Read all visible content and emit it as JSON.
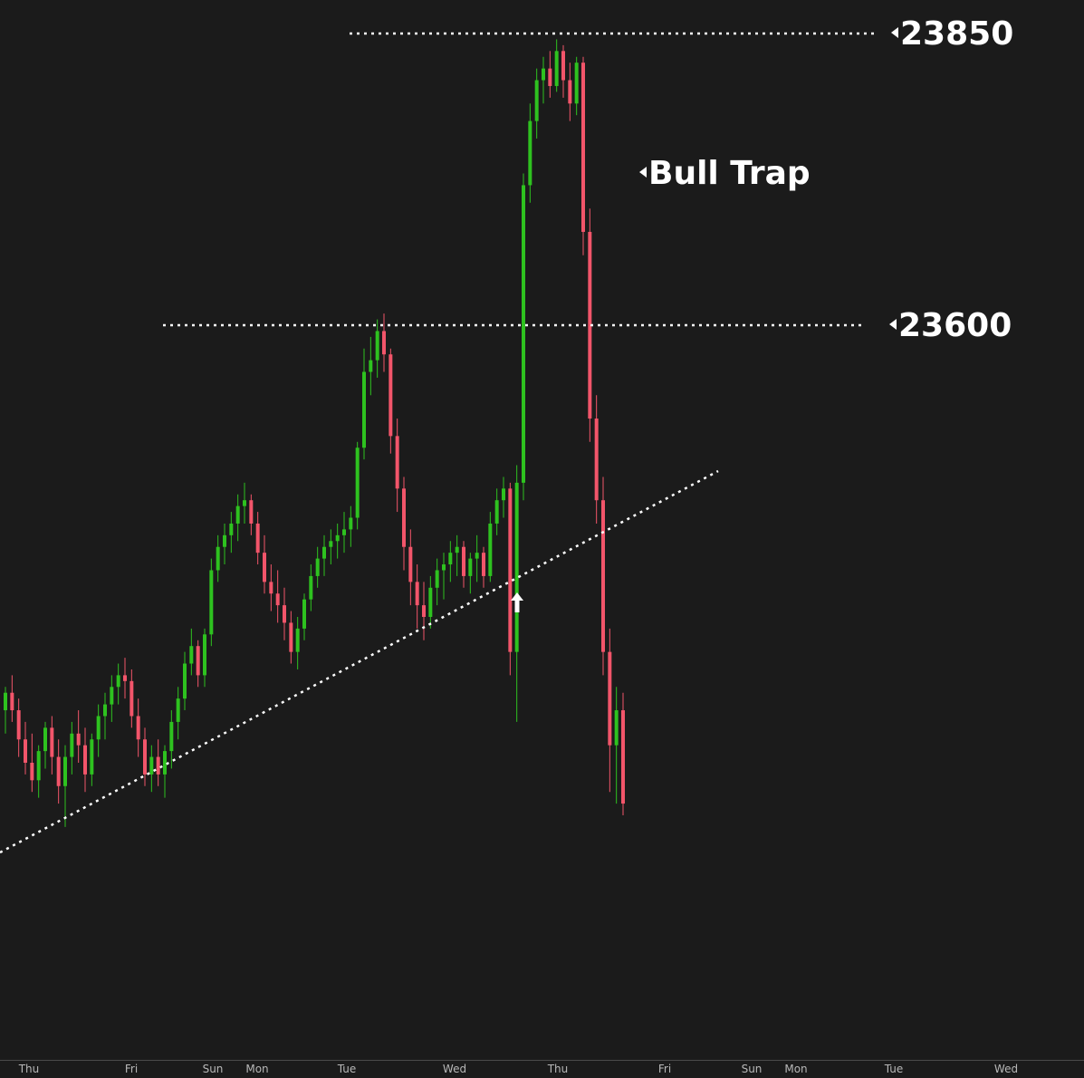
{
  "chart_data": {
    "type": "candlestick",
    "x_ticks": [
      "Thu",
      "Fri",
      "Sun",
      "Mon",
      "Tue",
      "Wed",
      "Thu",
      "Fri",
      "Sun",
      "Mon",
      "Tue",
      "Wed"
    ],
    "levels": [
      {
        "value": 23850,
        "label": "23850"
      },
      {
        "value": 23600,
        "label": "23600"
      }
    ],
    "annotation": "Bull Trap",
    "colors": {
      "up": "#2ec21f",
      "down": "#f2556a",
      "background": "#1b1b1b",
      "lines": "#ffffff"
    },
    "grid": false,
    "trendline": {
      "style": "dotted",
      "direction": "rising"
    },
    "series": [
      {
        "type": "ohlc",
        "values": [
          [
            23270,
            23290,
            23250,
            23285
          ],
          [
            23285,
            23300,
            23260,
            23270
          ],
          [
            23270,
            23280,
            23230,
            23245
          ],
          [
            23245,
            23260,
            23215,
            23225
          ],
          [
            23225,
            23250,
            23200,
            23210
          ],
          [
            23210,
            23240,
            23195,
            23235
          ],
          [
            23235,
            23260,
            23220,
            23255
          ],
          [
            23255,
            23265,
            23215,
            23230
          ],
          [
            23230,
            23245,
            23190,
            23205
          ],
          [
            23205,
            23240,
            23170,
            23230
          ],
          [
            23230,
            23260,
            23215,
            23250
          ],
          [
            23250,
            23270,
            23225,
            23240
          ],
          [
            23240,
            23255,
            23200,
            23215
          ],
          [
            23215,
            23250,
            23205,
            23245
          ],
          [
            23245,
            23275,
            23230,
            23265
          ],
          [
            23265,
            23285,
            23245,
            23275
          ],
          [
            23275,
            23300,
            23260,
            23290
          ],
          [
            23290,
            23310,
            23275,
            23300
          ],
          [
            23300,
            23315,
            23280,
            23295
          ],
          [
            23295,
            23305,
            23255,
            23265
          ],
          [
            23265,
            23280,
            23230,
            23245
          ],
          [
            23245,
            23255,
            23205,
            23215
          ],
          [
            23215,
            23240,
            23200,
            23230
          ],
          [
            23230,
            23245,
            23205,
            23215
          ],
          [
            23215,
            23240,
            23195,
            23235
          ],
          [
            23235,
            23270,
            23220,
            23260
          ],
          [
            23260,
            23290,
            23245,
            23280
          ],
          [
            23280,
            23320,
            23270,
            23310
          ],
          [
            23310,
            23340,
            23300,
            23325
          ],
          [
            23325,
            23330,
            23290,
            23300
          ],
          [
            23300,
            23340,
            23290,
            23335
          ],
          [
            23335,
            23400,
            23325,
            23390
          ],
          [
            23390,
            23420,
            23380,
            23410
          ],
          [
            23410,
            23430,
            23395,
            23420
          ],
          [
            23420,
            23440,
            23405,
            23430
          ],
          [
            23430,
            23455,
            23415,
            23445
          ],
          [
            23445,
            23465,
            23430,
            23450
          ],
          [
            23450,
            23455,
            23420,
            23430
          ],
          [
            23430,
            23440,
            23395,
            23405
          ],
          [
            23405,
            23420,
            23370,
            23380
          ],
          [
            23380,
            23395,
            23355,
            23370
          ],
          [
            23370,
            23390,
            23345,
            23360
          ],
          [
            23360,
            23375,
            23330,
            23345
          ],
          [
            23345,
            23355,
            23310,
            23320
          ],
          [
            23320,
            23350,
            23305,
            23340
          ],
          [
            23340,
            23370,
            23330,
            23365
          ],
          [
            23365,
            23395,
            23355,
            23385
          ],
          [
            23385,
            23410,
            23375,
            23400
          ],
          [
            23400,
            23420,
            23385,
            23410
          ],
          [
            23410,
            23425,
            23395,
            23415
          ],
          [
            23415,
            23430,
            23400,
            23420
          ],
          [
            23420,
            23440,
            23405,
            23425
          ],
          [
            23425,
            23445,
            23410,
            23435
          ],
          [
            23435,
            23500,
            23425,
            23495
          ],
          [
            23495,
            23580,
            23485,
            23560
          ],
          [
            23560,
            23590,
            23540,
            23570
          ],
          [
            23570,
            23605,
            23555,
            23595
          ],
          [
            23595,
            23610,
            23560,
            23575
          ],
          [
            23575,
            23580,
            23490,
            23505
          ],
          [
            23505,
            23520,
            23440,
            23460
          ],
          [
            23460,
            23470,
            23390,
            23410
          ],
          [
            23410,
            23425,
            23360,
            23380
          ],
          [
            23380,
            23395,
            23340,
            23360
          ],
          [
            23360,
            23380,
            23330,
            23350
          ],
          [
            23350,
            23385,
            23340,
            23375
          ],
          [
            23375,
            23400,
            23360,
            23390
          ],
          [
            23390,
            23405,
            23365,
            23395
          ],
          [
            23395,
            23415,
            23380,
            23405
          ],
          [
            23405,
            23420,
            23385,
            23410
          ],
          [
            23410,
            23415,
            23375,
            23385
          ],
          [
            23385,
            23405,
            23370,
            23400
          ],
          [
            23400,
            23420,
            23380,
            23405
          ],
          [
            23405,
            23410,
            23375,
            23385
          ],
          [
            23385,
            23440,
            23380,
            23430
          ],
          [
            23430,
            23460,
            23420,
            23450
          ],
          [
            23450,
            23470,
            23435,
            23460
          ],
          [
            23460,
            23465,
            23300,
            23320
          ],
          [
            23320,
            23480,
            23260,
            23465
          ],
          [
            23465,
            23730,
            23450,
            23720
          ],
          [
            23720,
            23790,
            23705,
            23775
          ],
          [
            23775,
            23820,
            23760,
            23810
          ],
          [
            23810,
            23830,
            23790,
            23820
          ],
          [
            23820,
            23835,
            23795,
            23805
          ],
          [
            23805,
            23845,
            23800,
            23835
          ],
          [
            23835,
            23840,
            23795,
            23810
          ],
          [
            23810,
            23825,
            23775,
            23790
          ],
          [
            23790,
            23830,
            23780,
            23825
          ],
          [
            23825,
            23830,
            23660,
            23680
          ],
          [
            23680,
            23700,
            23500,
            23520
          ],
          [
            23520,
            23540,
            23430,
            23450
          ],
          [
            23450,
            23470,
            23300,
            23320
          ],
          [
            23320,
            23340,
            23200,
            23240
          ],
          [
            23240,
            23290,
            23190,
            23270
          ],
          [
            23270,
            23285,
            23180,
            23190
          ]
        ]
      }
    ]
  }
}
